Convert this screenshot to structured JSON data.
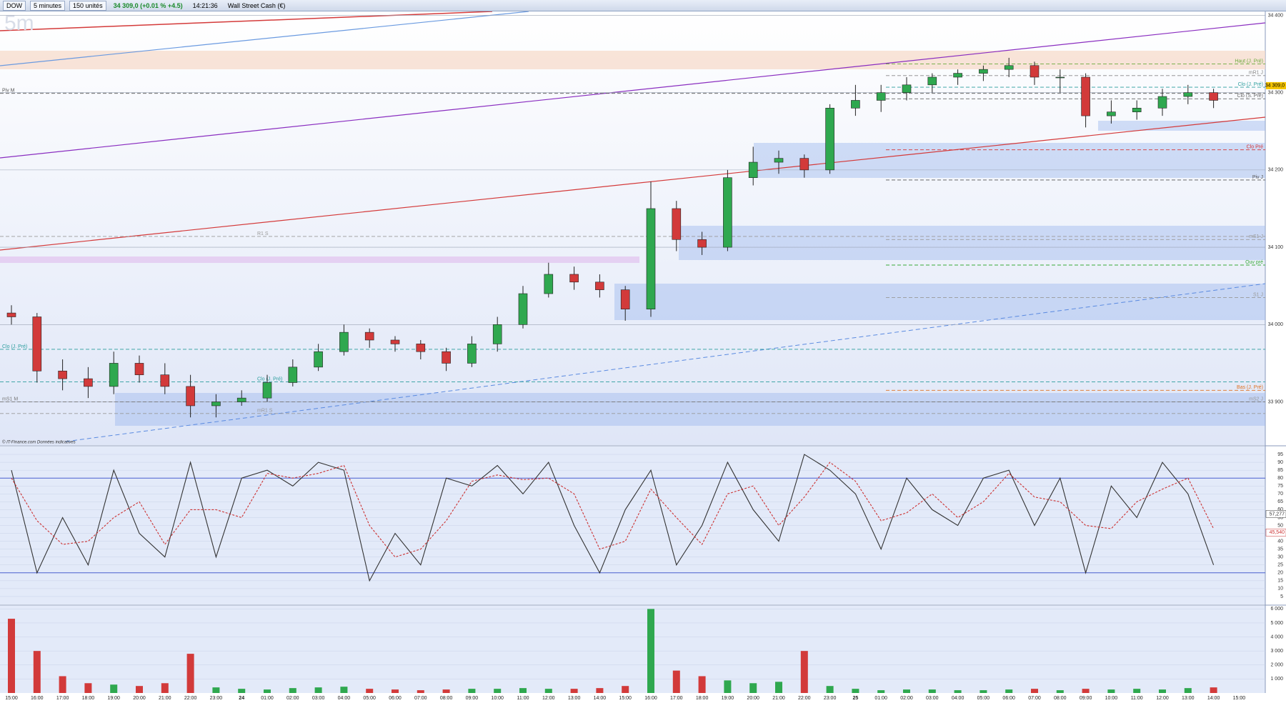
{
  "toolbar": {
    "symbol": "DOW",
    "interval": "5 minutes",
    "units": "150 unités",
    "quote": "34 309,0 (+0.01 % +4.5)",
    "time": "14:21:36",
    "name": "Wall Street Cash (€)"
  },
  "chart_data": [
    {
      "type": "candlestick",
      "watermark": "5m",
      "source": "© IT-Finance.com Données indicatives",
      "categories": [
        "15:00",
        "16:00",
        "17:00",
        "18:00",
        "19:00",
        "20:00",
        "21:00",
        "22:00",
        "23:00",
        "24",
        "01:00",
        "02:00",
        "03:00",
        "04:00",
        "05:00",
        "06:00",
        "07:00",
        "08:00",
        "09:00",
        "10:00",
        "11:00",
        "12:00",
        "13:00",
        "14:00",
        "15:00",
        "16:00",
        "17:00",
        "18:00",
        "19:00",
        "20:00",
        "21:00",
        "22:00",
        "23:00",
        "25",
        "01:00",
        "02:00",
        "03:00",
        "04:00",
        "05:00",
        "06:00",
        "07:00",
        "08:00",
        "09:00",
        "10:00",
        "11:00",
        "12:00",
        "13:00",
        "14:00",
        "15:00"
      ],
      "open": [
        34015,
        34010,
        33940,
        33930,
        33920,
        33950,
        33935,
        33920,
        33895,
        33900,
        33905,
        33925,
        33945,
        33965,
        33990,
        33980,
        33975,
        33965,
        33950,
        33975,
        34000,
        34040,
        34065,
        34055,
        34045,
        34020,
        34150,
        34110,
        34100,
        34190,
        34210,
        34215,
        34200,
        34280,
        34290,
        34300,
        34310,
        34320,
        34325,
        34330,
        34335,
        34320,
        34320,
        34270,
        34275,
        34280,
        34295,
        34300,
        null
      ],
      "high": [
        34025,
        34015,
        33955,
        33945,
        33965,
        33960,
        33950,
        33935,
        33910,
        33915,
        33935,
        33955,
        33975,
        34000,
        33995,
        33985,
        33980,
        33970,
        33985,
        34010,
        34050,
        34080,
        34075,
        34065,
        34050,
        34185,
        34160,
        34120,
        34200,
        34230,
        34225,
        34220,
        34285,
        34310,
        34310,
        34320,
        34325,
        34330,
        34335,
        34345,
        34340,
        34330,
        34325,
        34290,
        34290,
        34305,
        34310,
        34305,
        null
      ],
      "low": [
        34000,
        33925,
        33915,
        33905,
        33910,
        33925,
        33910,
        33880,
        33880,
        33895,
        33900,
        33920,
        33940,
        33960,
        33970,
        33965,
        33955,
        33940,
        33945,
        33965,
        33995,
        34035,
        34045,
        34035,
        34005,
        34010,
        34095,
        34090,
        34095,
        34180,
        34195,
        34190,
        34195,
        34270,
        34275,
        34290,
        34300,
        34310,
        34315,
        34320,
        34310,
        34300,
        34255,
        34260,
        34265,
        34270,
        34285,
        34280,
        null
      ],
      "close": [
        34010,
        33940,
        33930,
        33920,
        33950,
        33935,
        33920,
        33895,
        33900,
        33905,
        33925,
        33945,
        33965,
        33990,
        33980,
        33975,
        33965,
        33950,
        33975,
        34000,
        34040,
        34065,
        34055,
        34045,
        34020,
        34150,
        34110,
        34100,
        34190,
        34210,
        34215,
        34200,
        34280,
        34290,
        34300,
        34310,
        34320,
        34325,
        34330,
        34335,
        34320,
        34320,
        34270,
        34275,
        34280,
        34295,
        34300,
        34290,
        null
      ],
      "up_color": "#2fa84f",
      "down_color": "#d23a3a",
      "ylim": [
        33846,
        34405
      ],
      "yticks": [
        {
          "value": 33900,
          "label": "33 900"
        },
        {
          "value": 34000,
          "label": "34 000"
        },
        {
          "value": 34100,
          "label": "34 100"
        },
        {
          "value": 34200,
          "label": "34 200"
        },
        {
          "value": 34300,
          "label": "34 300"
        },
        {
          "value": 34400,
          "label": "34 400"
        }
      ],
      "grid": true,
      "last": {
        "value": 34309,
        "label": "34 309,0"
      },
      "levels": [
        {
          "name": "Haut (J. Pré)",
          "value": 34337,
          "color": "#6aaa3a",
          "side": "right"
        },
        {
          "name": "mR1 J",
          "value": 34322,
          "color": "#888888",
          "side": "right"
        },
        {
          "name": "Clo (J. Pré)",
          "value": 34307,
          "color": "#2a9d9d",
          "side": "right"
        },
        {
          "name": "Clo (S. Pré)",
          "value": 34292,
          "color": "#666666",
          "side": "right"
        },
        {
          "name": "Clo Pré",
          "value": 34226,
          "color": "#d63333",
          "side": "right"
        },
        {
          "name": "Piv J",
          "value": 34187,
          "color": "#555555",
          "side": "right"
        },
        {
          "name": "mS1 J",
          "value": 34110,
          "color": "#999999",
          "side": "right"
        },
        {
          "name": "Ouv pré",
          "value": 34077,
          "color": "#3aaa3a",
          "side": "right"
        },
        {
          "name": "S1 J",
          "value": 34035,
          "color": "#999999",
          "side": "right"
        },
        {
          "name": "Bas (J. Pré)",
          "value": 33915,
          "color": "#e07020",
          "side": "right"
        },
        {
          "name": "mS2 J",
          "value": 33900,
          "color": "#999999",
          "side": "right"
        },
        {
          "name": "Piv M",
          "value": 34299,
          "color": "#555555",
          "side": "left"
        },
        {
          "name": "R1 S",
          "value": 34114,
          "color": "#999999",
          "side": "center"
        },
        {
          "name": "Clo (J. Pré)",
          "value": 33968,
          "color": "#2a9d9d",
          "side": "left"
        },
        {
          "name": "Clo (J. Pré)",
          "value": 33926,
          "color": "#2a9d9d",
          "side": "center"
        },
        {
          "name": "mS1 M",
          "value": 33900,
          "color": "#777777",
          "side": "left"
        },
        {
          "name": "mR1 S",
          "value": 33885,
          "color": "#999999",
          "side": "center"
        }
      ]
    },
    {
      "type": "line",
      "series": [
        {
          "name": "%K",
          "color": "#333333",
          "values": [
            85,
            20,
            55,
            25,
            85,
            45,
            30,
            90,
            30,
            80,
            85,
            75,
            90,
            85,
            15,
            45,
            25,
            80,
            75,
            88,
            70,
            90,
            50,
            20,
            60,
            85,
            25,
            50,
            90,
            60,
            40,
            95,
            85,
            70,
            35,
            80,
            60,
            50,
            80,
            85,
            50,
            80,
            20,
            75,
            55,
            90,
            70,
            25,
            null
          ]
        },
        {
          "name": "%D",
          "color": "#cc3333",
          "values": [
            80,
            53,
            38,
            40,
            55,
            65,
            38,
            60,
            60,
            55,
            83,
            80,
            83,
            88,
            50,
            30,
            35,
            53,
            78,
            82,
            79,
            80,
            70,
            35,
            40,
            73,
            55,
            38,
            70,
            75,
            50,
            68,
            90,
            78,
            53,
            58,
            70,
            55,
            65,
            83,
            68,
            65,
            50,
            48,
            65,
            73,
            80,
            48,
            null
          ]
        }
      ],
      "ylim": [
        0,
        100
      ],
      "yticks": [
        5,
        10,
        15,
        20,
        25,
        30,
        35,
        40,
        45,
        50,
        55,
        60,
        65,
        70,
        75,
        80,
        85,
        90,
        95
      ],
      "bands": [
        20,
        80
      ],
      "readouts": [
        {
          "value": 57.277,
          "label": "57,277",
          "color": "#333333"
        },
        {
          "value": 45.54,
          "label": "45,540",
          "color": "#cc3333"
        }
      ]
    },
    {
      "type": "bar",
      "values": [
        5300,
        3000,
        1200,
        700,
        600,
        500,
        700,
        2800,
        400,
        300,
        250,
        350,
        400,
        450,
        300,
        250,
        200,
        250,
        300,
        300,
        350,
        300,
        300,
        350,
        500,
        6000,
        1600,
        1200,
        900,
        700,
        800,
        3000,
        500,
        300,
        200,
        250,
        250,
        200,
        200,
        250,
        300,
        200,
        300,
        250,
        300,
        250,
        350,
        400,
        null
      ],
      "ylim": [
        0,
        6222
      ],
      "yticks": [
        {
          "value": 1000,
          "label": "1 000"
        },
        {
          "value": 2000,
          "label": "2 000"
        },
        {
          "value": 3000,
          "label": "3 000"
        },
        {
          "value": 4000,
          "label": "4 000"
        },
        {
          "value": 5000,
          "label": "5 000"
        },
        {
          "value": 6000,
          "label": "6 000"
        }
      ]
    }
  ]
}
